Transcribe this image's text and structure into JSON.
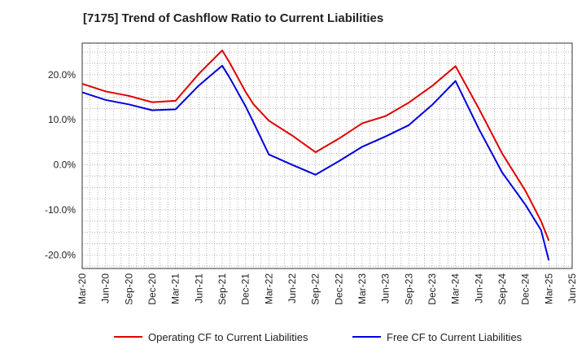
{
  "chart_data": {
    "type": "line",
    "title": "[7175]  Trend of Cashflow Ratio to Current Liabilities",
    "xlabel": "",
    "ylabel": "",
    "x_ticks": [
      "Mar-20",
      "Jun-20",
      "Sep-20",
      "Dec-20",
      "Mar-21",
      "Jun-21",
      "Sep-21",
      "Dec-21",
      "Mar-22",
      "Jun-22",
      "Sep-22",
      "Dec-22",
      "Mar-23",
      "Jun-23",
      "Sep-23",
      "Dec-23",
      "Mar-24",
      "Jun-24",
      "Sep-24",
      "Dec-24",
      "Mar-25",
      "Jun-25"
    ],
    "y_ticks": [
      "20.0%",
      "10.0%",
      "0.0%",
      "-10.0%",
      "-20.0%"
    ],
    "ylim": [
      -23,
      27
    ],
    "grid": true,
    "legend_position": "bottom",
    "series": [
      {
        "name": "Operating CF to Current Liabilities",
        "color": "#e00000",
        "points": [
          [
            "Mar-20",
            18.0
          ],
          [
            "Jun-20",
            16.3
          ],
          [
            "Sep-20",
            15.3
          ],
          [
            "Dec-20",
            13.9
          ],
          [
            "Mar-21",
            14.2
          ],
          [
            "Jun-21",
            20.2
          ],
          [
            "Sep-21",
            25.4
          ],
          [
            "Oct-21",
            22.5
          ],
          [
            "Dec-21",
            16.2
          ],
          [
            "Jan-22",
            13.5
          ],
          [
            "Mar-22",
            9.8
          ],
          [
            "Jun-22",
            6.5
          ],
          [
            "Sep-22",
            2.8
          ],
          [
            "Dec-22",
            5.8
          ],
          [
            "Mar-23",
            9.2
          ],
          [
            "Jun-23",
            10.8
          ],
          [
            "Sep-23",
            13.8
          ],
          [
            "Dec-23",
            17.5
          ],
          [
            "Mar-24",
            21.9
          ],
          [
            "Jun-24",
            12.5
          ],
          [
            "Sep-24",
            2.5
          ],
          [
            "Dec-24",
            -5.8
          ],
          [
            "Feb-25",
            -12.5
          ],
          [
            "Mar-25",
            -16.8
          ]
        ]
      },
      {
        "name": "Free CF to Current Liabilities",
        "color": "#0000dd",
        "points": [
          [
            "Mar-20",
            16.1
          ],
          [
            "Jun-20",
            14.4
          ],
          [
            "Sep-20",
            13.4
          ],
          [
            "Dec-20",
            12.1
          ],
          [
            "Mar-21",
            12.3
          ],
          [
            "Jun-21",
            17.6
          ],
          [
            "Sep-21",
            22.0
          ],
          [
            "Oct-21",
            19.2
          ],
          [
            "Dec-21",
            13.0
          ],
          [
            "Jan-22",
            9.5
          ],
          [
            "Mar-22",
            2.3
          ],
          [
            "Jun-22",
            0.0
          ],
          [
            "Sep-22",
            -2.2
          ],
          [
            "Dec-22",
            0.8
          ],
          [
            "Mar-23",
            4.0
          ],
          [
            "Jun-23",
            6.3
          ],
          [
            "Sep-23",
            8.8
          ],
          [
            "Dec-23",
            13.3
          ],
          [
            "Mar-24",
            18.6
          ],
          [
            "Jun-24",
            8.0
          ],
          [
            "Sep-24",
            -1.7
          ],
          [
            "Dec-24",
            -8.9
          ],
          [
            "Feb-25",
            -14.5
          ],
          [
            "Mar-25",
            -21.2
          ]
        ]
      }
    ]
  }
}
